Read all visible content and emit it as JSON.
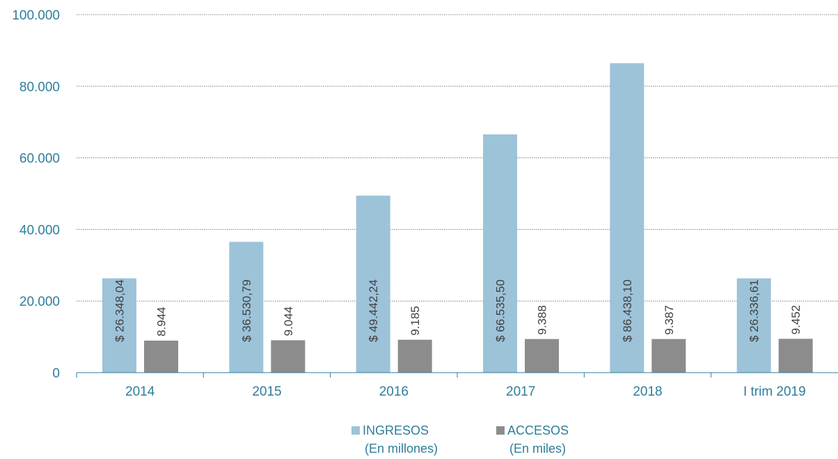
{
  "colors": {
    "ingresos": "#9DC3D9",
    "accesos": "#8C8C8C",
    "axis_text": "#2E7D9B",
    "grid": "#7F7F7F",
    "axis_line": "#2E7D9B"
  },
  "chart_data": {
    "type": "bar",
    "categories": [
      "2014",
      "2015",
      "2016",
      "2017",
      "2018",
      "I trim 2019"
    ],
    "ylim": [
      0,
      100000
    ],
    "yticks": [
      0,
      20000,
      40000,
      60000,
      80000,
      100000
    ],
    "ytick_labels": [
      "0",
      "20.000",
      "40.000",
      "60.000",
      "80.000",
      "100.000"
    ],
    "grid": true,
    "legend_position": "bottom",
    "series": [
      {
        "name": "INGRESOS",
        "name_line2": "(En millones)",
        "values": [
          26348.04,
          36530.79,
          49442.24,
          66535.5,
          86438.1,
          26336.61
        ],
        "labels": [
          "$ 26.348,04",
          "$ 36.530,79",
          "$ 49.442,24",
          "$ 66.535,50",
          "$ 86.438,10",
          "$ 26.336,61"
        ]
      },
      {
        "name": "ACCESOS",
        "name_line2": "(En miles)",
        "values": [
          8944,
          9044,
          9185,
          9388,
          9387,
          9452
        ],
        "labels": [
          "8.944",
          "9.044",
          "9.185",
          "9.388",
          "9.387",
          "9.452"
        ]
      }
    ]
  }
}
